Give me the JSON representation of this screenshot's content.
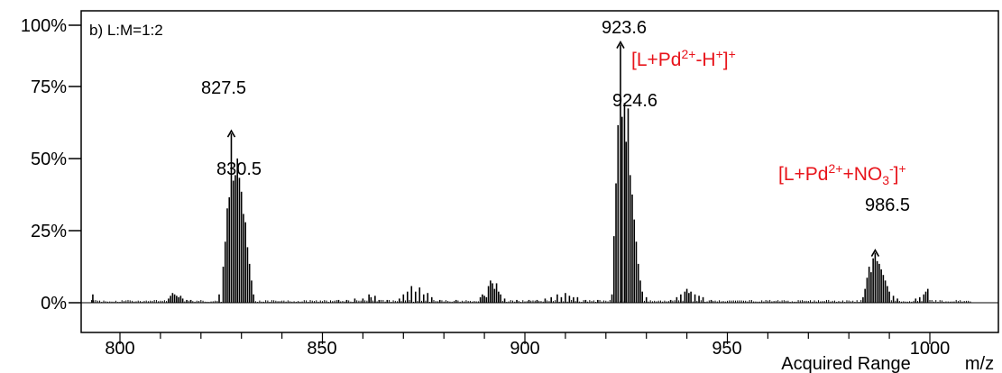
{
  "chart_data": {
    "type": "bar",
    "title": "",
    "panel_label": "b) L:M=1:2",
    "xlabel": "m/z",
    "range_label": "Acquired Range",
    "ylabel": "",
    "xlim": [
      793,
      1010
    ],
    "ylim": [
      0,
      100
    ],
    "x_ticks": [
      "800",
      "850",
      "900",
      "950",
      "1000"
    ],
    "y_ticks": [
      "0%",
      "25%",
      "50%",
      "75%",
      "100%"
    ],
    "grid": false,
    "peaks": [
      {
        "mz": 793.3,
        "intensity": 3
      },
      {
        "mz": 812.0,
        "intensity": 1.5
      },
      {
        "mz": 812.5,
        "intensity": 2.5
      },
      {
        "mz": 813.0,
        "intensity": 3.5
      },
      {
        "mz": 813.5,
        "intensity": 3
      },
      {
        "mz": 814.0,
        "intensity": 2.5
      },
      {
        "mz": 814.5,
        "intensity": 2
      },
      {
        "mz": 815.0,
        "intensity": 2.5
      },
      {
        "mz": 815.5,
        "intensity": 1.5
      },
      {
        "mz": 816.5,
        "intensity": 1
      },
      {
        "mz": 817.5,
        "intensity": 1
      },
      {
        "mz": 824.5,
        "intensity": 3
      },
      {
        "mz": 825.5,
        "intensity": 13
      },
      {
        "mz": 826.0,
        "intensity": 22
      },
      {
        "mz": 826.5,
        "intensity": 34
      },
      {
        "mz": 827.0,
        "intensity": 38
      },
      {
        "mz": 827.5,
        "intensity": 61
      },
      {
        "mz": 828.0,
        "intensity": 44
      },
      {
        "mz": 828.5,
        "intensity": 46
      },
      {
        "mz": 829.0,
        "intensity": 52
      },
      {
        "mz": 829.5,
        "intensity": 45
      },
      {
        "mz": 830.0,
        "intensity": 40
      },
      {
        "mz": 830.5,
        "intensity": 32
      },
      {
        "mz": 831.0,
        "intensity": 29
      },
      {
        "mz": 831.5,
        "intensity": 20
      },
      {
        "mz": 832.0,
        "intensity": 14
      },
      {
        "mz": 832.5,
        "intensity": 8
      },
      {
        "mz": 833.0,
        "intensity": 3
      },
      {
        "mz": 854.0,
        "intensity": 1
      },
      {
        "mz": 856.0,
        "intensity": 1
      },
      {
        "mz": 858.0,
        "intensity": 1.5
      },
      {
        "mz": 860.0,
        "intensity": 1.5
      },
      {
        "mz": 861.5,
        "intensity": 3
      },
      {
        "mz": 862.0,
        "intensity": 2
      },
      {
        "mz": 863.0,
        "intensity": 2.5
      },
      {
        "mz": 864.0,
        "intensity": 1
      },
      {
        "mz": 866.0,
        "intensity": 1
      },
      {
        "mz": 869.0,
        "intensity": 1.5
      },
      {
        "mz": 870.0,
        "intensity": 3
      },
      {
        "mz": 871.0,
        "intensity": 4
      },
      {
        "mz": 872.0,
        "intensity": 6
      },
      {
        "mz": 873.0,
        "intensity": 4
      },
      {
        "mz": 874.0,
        "intensity": 5.5
      },
      {
        "mz": 875.0,
        "intensity": 3
      },
      {
        "mz": 876.0,
        "intensity": 3.5
      },
      {
        "mz": 877.0,
        "intensity": 2
      },
      {
        "mz": 879.0,
        "intensity": 1
      },
      {
        "mz": 883.0,
        "intensity": 1
      },
      {
        "mz": 889.0,
        "intensity": 2
      },
      {
        "mz": 889.5,
        "intensity": 3
      },
      {
        "mz": 890.0,
        "intensity": 2.5
      },
      {
        "mz": 890.5,
        "intensity": 2
      },
      {
        "mz": 891.0,
        "intensity": 6
      },
      {
        "mz": 891.5,
        "intensity": 8
      },
      {
        "mz": 892.0,
        "intensity": 7
      },
      {
        "mz": 892.5,
        "intensity": 5
      },
      {
        "mz": 893.0,
        "intensity": 7
      },
      {
        "mz": 893.5,
        "intensity": 4
      },
      {
        "mz": 894.0,
        "intensity": 3
      },
      {
        "mz": 895.0,
        "intensity": 1.5
      },
      {
        "mz": 898.0,
        "intensity": 1
      },
      {
        "mz": 901.0,
        "intensity": 1
      },
      {
        "mz": 903.0,
        "intensity": 1
      },
      {
        "mz": 905.0,
        "intensity": 1.5
      },
      {
        "mz": 906.5,
        "intensity": 2
      },
      {
        "mz": 908.0,
        "intensity": 3
      },
      {
        "mz": 909.0,
        "intensity": 2
      },
      {
        "mz": 910.0,
        "intensity": 3.5
      },
      {
        "mz": 911.0,
        "intensity": 2.5
      },
      {
        "mz": 912.0,
        "intensity": 2
      },
      {
        "mz": 913.0,
        "intensity": 2
      },
      {
        "mz": 915.0,
        "intensity": 1
      },
      {
        "mz": 918.0,
        "intensity": 1
      },
      {
        "mz": 921.5,
        "intensity": 3
      },
      {
        "mz": 922.0,
        "intensity": 24
      },
      {
        "mz": 922.5,
        "intensity": 43
      },
      {
        "mz": 923.0,
        "intensity": 64
      },
      {
        "mz": 923.6,
        "intensity": 93
      },
      {
        "mz": 924.0,
        "intensity": 67
      },
      {
        "mz": 924.6,
        "intensity": 72
      },
      {
        "mz": 925.0,
        "intensity": 58
      },
      {
        "mz": 925.5,
        "intensity": 70
      },
      {
        "mz": 926.0,
        "intensity": 46
      },
      {
        "mz": 926.5,
        "intensity": 39
      },
      {
        "mz": 927.0,
        "intensity": 30
      },
      {
        "mz": 927.5,
        "intensity": 22
      },
      {
        "mz": 928.0,
        "intensity": 14
      },
      {
        "mz": 928.5,
        "intensity": 8
      },
      {
        "mz": 929.0,
        "intensity": 4
      },
      {
        "mz": 930.0,
        "intensity": 2
      },
      {
        "mz": 936.0,
        "intensity": 1
      },
      {
        "mz": 937.5,
        "intensity": 2
      },
      {
        "mz": 938.5,
        "intensity": 3
      },
      {
        "mz": 939.5,
        "intensity": 4
      },
      {
        "mz": 940.0,
        "intensity": 5
      },
      {
        "mz": 940.5,
        "intensity": 3.5
      },
      {
        "mz": 941.0,
        "intensity": 4
      },
      {
        "mz": 942.0,
        "intensity": 3
      },
      {
        "mz": 943.0,
        "intensity": 2.5
      },
      {
        "mz": 944.0,
        "intensity": 2
      },
      {
        "mz": 946.0,
        "intensity": 1
      },
      {
        "mz": 983.5,
        "intensity": 2
      },
      {
        "mz": 984.0,
        "intensity": 5
      },
      {
        "mz": 984.5,
        "intensity": 9
      },
      {
        "mz": 985.0,
        "intensity": 13
      },
      {
        "mz": 985.5,
        "intensity": 11
      },
      {
        "mz": 986.0,
        "intensity": 16
      },
      {
        "mz": 986.5,
        "intensity": 18
      },
      {
        "mz": 987.0,
        "intensity": 15
      },
      {
        "mz": 987.5,
        "intensity": 14
      },
      {
        "mz": 988.0,
        "intensity": 12
      },
      {
        "mz": 988.5,
        "intensity": 10
      },
      {
        "mz": 989.0,
        "intensity": 8
      },
      {
        "mz": 989.5,
        "intensity": 6
      },
      {
        "mz": 990.0,
        "intensity": 4
      },
      {
        "mz": 991.0,
        "intensity": 2.5
      },
      {
        "mz": 992.0,
        "intensity": 1.5
      },
      {
        "mz": 996.5,
        "intensity": 1.5
      },
      {
        "mz": 997.5,
        "intensity": 2
      },
      {
        "mz": 998.5,
        "intensity": 3
      },
      {
        "mz": 999.0,
        "intensity": 4
      },
      {
        "mz": 999.5,
        "intensity": 5
      }
    ],
    "peak_labels": [
      {
        "text": "827.5",
        "mz": 827.5,
        "intensity": 61,
        "marker": true
      },
      {
        "text": "830.5",
        "mz": 830.5,
        "intensity": 46,
        "marker": false
      },
      {
        "text": "923.6",
        "mz": 923.6,
        "intensity": 93,
        "marker": true
      },
      {
        "text": "924.6",
        "mz": 924.6,
        "intensity": 72,
        "marker": false
      },
      {
        "text": "986.5",
        "mz": 986.5,
        "intensity": 18,
        "marker": true
      }
    ],
    "annotations": [
      {
        "base": "[L+Pd",
        "sup1": "2+",
        "mid": "-H",
        "sup2": "+",
        "tail": "]",
        "sup3": "+"
      },
      {
        "base": "[L+Pd",
        "sup1": "2+",
        "mid": "+NO",
        "sub": "3",
        "sup2": "-",
        "tail": "]",
        "sup3": "+"
      }
    ],
    "colors": {
      "annotation": "#e8141b",
      "trace": "#000000"
    }
  }
}
